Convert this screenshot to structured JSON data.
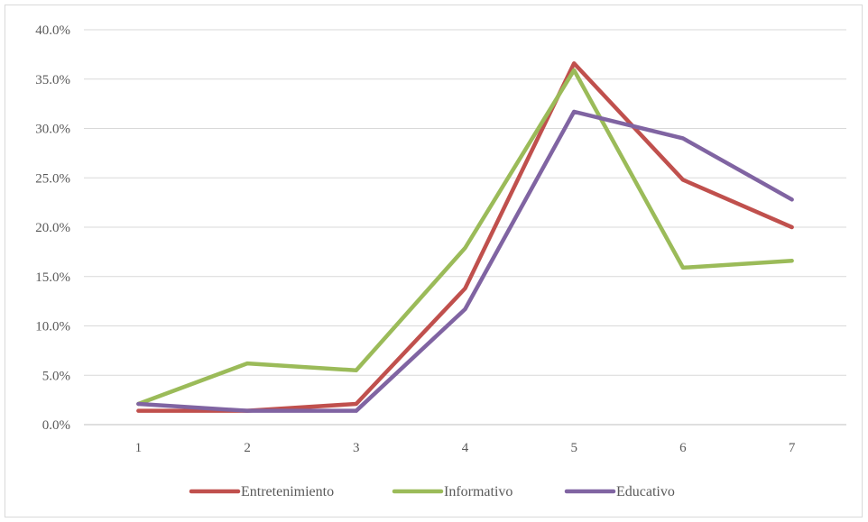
{
  "chart_data": {
    "type": "line",
    "x": [
      1,
      2,
      3,
      4,
      5,
      6,
      7
    ],
    "ylim": [
      0,
      40
    ],
    "y_ticks": [
      "0.0%",
      "5.0%",
      "10.0%",
      "15.0%",
      "20.0%",
      "25.0%",
      "30.0%",
      "35.0%",
      "40.0%"
    ],
    "x_ticks": [
      "1",
      "2",
      "3",
      "4",
      "5",
      "6",
      "7"
    ],
    "grid": true,
    "legend_position": "bottom",
    "series": [
      {
        "name": "Entretenimiento",
        "color": "#c0504d",
        "values": [
          1.4,
          1.4,
          2.1,
          13.8,
          36.6,
          24.8,
          20.0
        ]
      },
      {
        "name": "Informativo",
        "color": "#9bbb59",
        "values": [
          2.1,
          6.2,
          5.5,
          17.9,
          35.9,
          15.9,
          16.6
        ]
      },
      {
        "name": "Educativo",
        "color": "#8064a2",
        "values": [
          2.1,
          1.4,
          1.4,
          11.7,
          31.7,
          29.0,
          22.8
        ]
      }
    ]
  }
}
